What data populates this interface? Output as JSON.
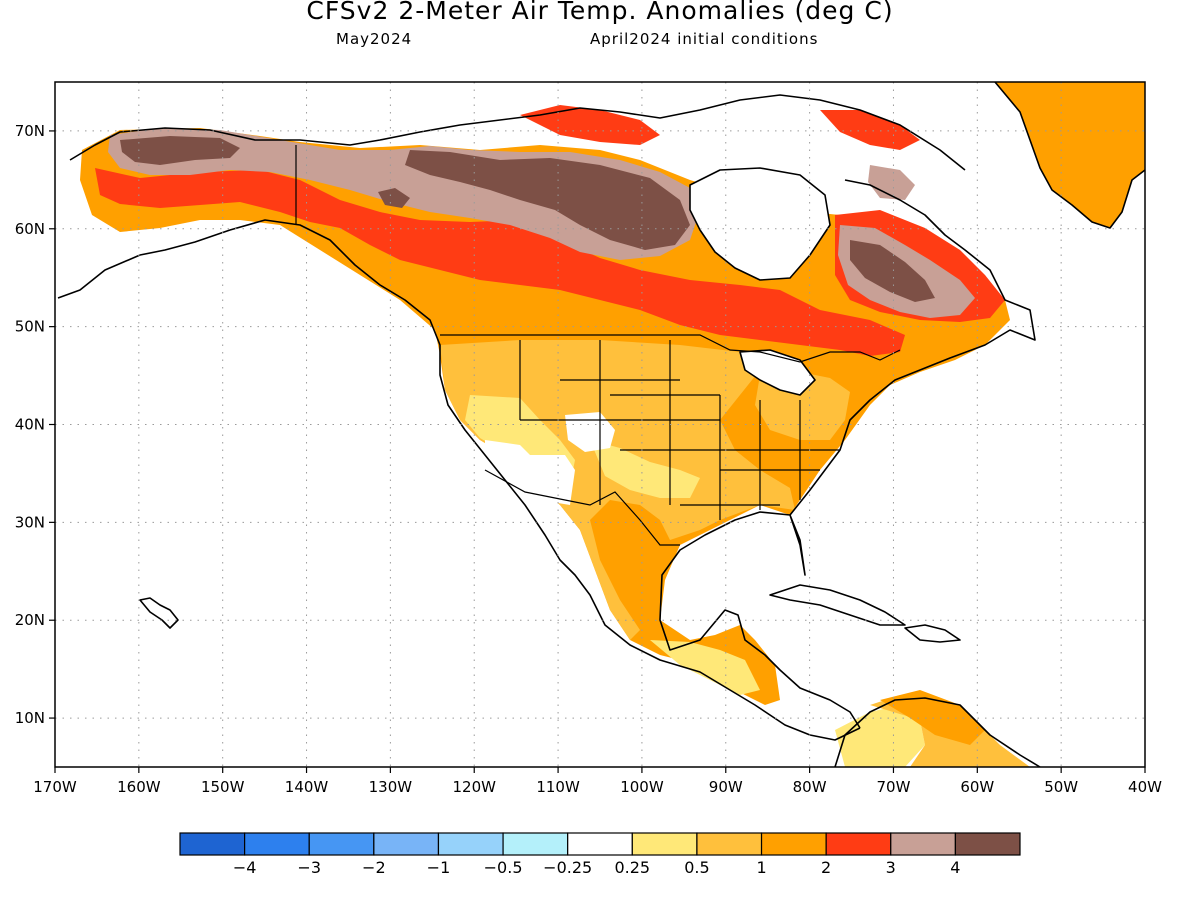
{
  "title": "CFSv2 2-Meter Air Temp. Anomalies (deg C)",
  "valid_month": "May2024",
  "initial_conditions": "April2024 initial conditions",
  "map": {
    "lon_range": [
      -170,
      -40
    ],
    "lat_range": [
      5,
      75
    ],
    "lon_ticks": [
      {
        "value": -170,
        "label": "170W"
      },
      {
        "value": -160,
        "label": "160W"
      },
      {
        "value": -150,
        "label": "150W"
      },
      {
        "value": -140,
        "label": "140W"
      },
      {
        "value": -130,
        "label": "130W"
      },
      {
        "value": -120,
        "label": "120W"
      },
      {
        "value": -110,
        "label": "110W"
      },
      {
        "value": -100,
        "label": "100W"
      },
      {
        "value": -90,
        "label": "90W"
      },
      {
        "value": -80,
        "label": "80W"
      },
      {
        "value": -70,
        "label": "70W"
      },
      {
        "value": -60,
        "label": "60W"
      },
      {
        "value": -50,
        "label": "50W"
      },
      {
        "value": -40,
        "label": "40W"
      }
    ],
    "lat_ticks": [
      {
        "value": 10,
        "label": "10N"
      },
      {
        "value": 20,
        "label": "20N"
      },
      {
        "value": 30,
        "label": "30N"
      },
      {
        "value": 40,
        "label": "40N"
      },
      {
        "value": 50,
        "label": "50N"
      },
      {
        "value": 60,
        "label": "60N"
      },
      {
        "value": 70,
        "label": "70N"
      }
    ],
    "grid": true,
    "grid_style": "dotted"
  },
  "colorbar": {
    "colors": [
      "#1e64d2",
      "#2d80ee",
      "#4696f3",
      "#78b4f7",
      "#96d2fa",
      "#b4f0fa",
      "#ffffff",
      "#ffe878",
      "#ffc03c",
      "#ffa000",
      "#ff3c14",
      "#c8a096",
      "#7d5046"
    ],
    "labels": [
      "−4",
      "−3",
      "−2",
      "−1",
      "−0.5",
      "−0.25",
      "0.25",
      "0.5",
      "1",
      "2",
      "3",
      "4"
    ]
  },
  "palette": {
    "brown": "#7d5046",
    "pink": "#c8a096",
    "red": "#ff3c14",
    "orange": "#ffa000",
    "light_orange": "#ffc03c",
    "yellow": "#ffe878"
  }
}
